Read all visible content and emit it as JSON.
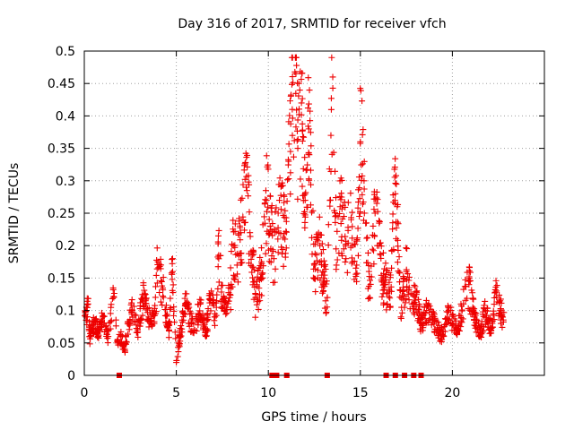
{
  "chart_data": {
    "type": "scatter",
    "title": "Day 316 of 2017, SRMTID for receiver vfch",
    "xlabel": "GPS time / hours",
    "ylabel": "SRMTID / TECUs",
    "xlim": [
      0,
      25
    ],
    "ylim": [
      0,
      0.5
    ],
    "xticks": [
      0,
      5,
      10,
      15,
      20
    ],
    "xtick_labels": [
      "0",
      "5",
      "10",
      "15",
      "20"
    ],
    "yticks": [
      0,
      0.05,
      0.1,
      0.15,
      0.2,
      0.25,
      0.3,
      0.35,
      0.4,
      0.45,
      0.5
    ],
    "ytick_labels": [
      "0",
      "0.05",
      "0.1",
      "0.15",
      "0.2",
      "0.25",
      "0.3",
      "0.35",
      "0.4",
      "0.45",
      "0.5"
    ],
    "grid": true,
    "series": [
      {
        "name": "SRMTID",
        "marker": "+",
        "color": "#ee0000",
        "approx_point_count": 2600,
        "sample_points": [
          [
            0.1,
            0.085
          ],
          [
            0.2,
            0.11
          ],
          [
            0.3,
            0.06
          ],
          [
            0.5,
            0.08
          ],
          [
            0.8,
            0.07
          ],
          [
            1.0,
            0.09
          ],
          [
            1.3,
            0.06
          ],
          [
            1.6,
            0.12
          ],
          [
            1.8,
            0.05
          ],
          [
            2.0,
            0.06
          ],
          [
            2.2,
            0.04
          ],
          [
            2.4,
            0.08
          ],
          [
            2.6,
            0.1
          ],
          [
            2.9,
            0.07
          ],
          [
            3.2,
            0.12
          ],
          [
            3.5,
            0.09
          ],
          [
            3.8,
            0.08
          ],
          [
            4.0,
            0.175
          ],
          [
            4.3,
            0.12
          ],
          [
            4.6,
            0.07
          ],
          [
            4.8,
            0.16
          ],
          [
            5.0,
            0.02
          ],
          [
            5.2,
            0.06
          ],
          [
            5.5,
            0.11
          ],
          [
            5.8,
            0.08
          ],
          [
            6.0,
            0.07
          ],
          [
            6.3,
            0.11
          ],
          [
            6.6,
            0.06
          ],
          [
            6.9,
            0.13
          ],
          [
            7.1,
            0.09
          ],
          [
            7.3,
            0.185
          ],
          [
            7.6,
            0.1
          ],
          [
            7.9,
            0.12
          ],
          [
            8.1,
            0.2
          ],
          [
            8.3,
            0.17
          ],
          [
            8.5,
            0.22
          ],
          [
            8.8,
            0.29
          ],
          [
            9.0,
            0.22
          ],
          [
            9.3,
            0.12
          ],
          [
            9.6,
            0.15
          ],
          [
            9.9,
            0.27
          ],
          [
            10.1,
            0.23
          ],
          [
            10.3,
            0.18
          ],
          [
            10.6,
            0.27
          ],
          [
            10.9,
            0.21
          ],
          [
            11.1,
            0.33
          ],
          [
            11.3,
            0.41
          ],
          [
            11.5,
            0.465
          ],
          [
            11.6,
            0.35
          ],
          [
            11.8,
            0.42
          ],
          [
            12.0,
            0.27
          ],
          [
            12.2,
            0.38
          ],
          [
            12.5,
            0.17
          ],
          [
            12.8,
            0.2
          ],
          [
            13.0,
            0.15
          ],
          [
            13.2,
            0.12
          ],
          [
            13.4,
            0.37
          ],
          [
            13.5,
            0.46
          ],
          [
            13.7,
            0.17
          ],
          [
            13.9,
            0.26
          ],
          [
            14.2,
            0.2
          ],
          [
            14.5,
            0.24
          ],
          [
            14.8,
            0.17
          ],
          [
            15.0,
            0.36
          ],
          [
            15.2,
            0.3
          ],
          [
            15.5,
            0.12
          ],
          [
            15.8,
            0.25
          ],
          [
            16.0,
            0.2
          ],
          [
            16.3,
            0.14
          ],
          [
            16.6,
            0.13
          ],
          [
            16.9,
            0.28
          ],
          [
            17.0,
            0.26
          ],
          [
            17.2,
            0.09
          ],
          [
            17.5,
            0.16
          ],
          [
            17.8,
            0.11
          ],
          [
            18.0,
            0.12
          ],
          [
            18.3,
            0.08
          ],
          [
            18.6,
            0.1
          ],
          [
            18.9,
            0.09
          ],
          [
            19.2,
            0.07
          ],
          [
            19.5,
            0.06
          ],
          [
            19.8,
            0.1
          ],
          [
            20.0,
            0.08
          ],
          [
            20.3,
            0.07
          ],
          [
            20.6,
            0.11
          ],
          [
            20.9,
            0.14
          ],
          [
            21.2,
            0.09
          ],
          [
            21.5,
            0.06
          ],
          [
            21.8,
            0.1
          ],
          [
            22.1,
            0.07
          ],
          [
            22.4,
            0.13
          ],
          [
            22.7,
            0.09
          ]
        ],
        "zero_value_hours": [
          1.9,
          10.2,
          10.35,
          10.45,
          11.0,
          13.2,
          16.4,
          16.9,
          17.4,
          17.9,
          18.3
        ]
      }
    ]
  }
}
